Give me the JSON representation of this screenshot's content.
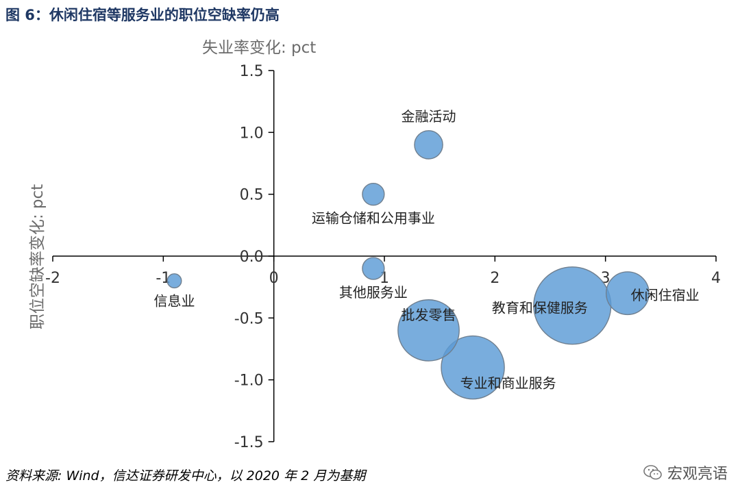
{
  "header": {
    "title": "图 6：休闲住宿等服务业的职位空缺率仍高"
  },
  "footer": {
    "source": "资料来源: Wind，信达证券研发中心，以 2020 年 2 月为基期",
    "watermark": "宏观亮语"
  },
  "chart_data": {
    "type": "scatter",
    "subtype": "bubble",
    "title": "图 6：休闲住宿等服务业的职位空缺率仍高",
    "xlabel": "失业率变化: pct",
    "ylabel": "职位空缺率变化: pct",
    "xlim": [
      -2,
      4
    ],
    "ylim": [
      -1.5,
      1.5
    ],
    "x_ticks": [
      -2,
      -1,
      0,
      1,
      2,
      3,
      4
    ],
    "y_ticks": [
      1.5,
      1.0,
      0.5,
      0.0,
      -0.5,
      -1.0,
      -1.5
    ],
    "x_tick_labels": [
      "-2",
      "-1",
      "0",
      "1",
      "2",
      "3",
      "4"
    ],
    "y_tick_labels": [
      "1.5",
      "1.0",
      "0.5",
      "0.0",
      "-0.5",
      "-1.0",
      "-1.5"
    ],
    "grid": false,
    "bubble_color": "#5b9bd5",
    "series": [
      {
        "name": "金融活动",
        "x": 1.4,
        "y": 0.9,
        "size": 1.0,
        "label_pos": "above"
      },
      {
        "name": "运输仓储和公用事业",
        "x": 0.9,
        "y": 0.5,
        "size": 0.6,
        "label_pos": "below"
      },
      {
        "name": "信息业",
        "x": -0.9,
        "y": -0.2,
        "size": 0.25,
        "label_pos": "below"
      },
      {
        "name": "其他服务业",
        "x": 0.9,
        "y": -0.1,
        "size": 0.6,
        "label_pos": "below"
      },
      {
        "name": "批发零售",
        "x": 1.4,
        "y": -0.6,
        "size": 4.7,
        "label_pos": "inside"
      },
      {
        "name": "专业和商业服务",
        "x": 1.8,
        "y": -0.9,
        "size": 5.0,
        "label_pos": "right-in"
      },
      {
        "name": "教育和保健服务",
        "x": 2.7,
        "y": -0.4,
        "size": 7.5,
        "label_pos": "left-in"
      },
      {
        "name": "休闲住宿业",
        "x": 3.2,
        "y": -0.3,
        "size": 2.3,
        "label_pos": "right-in"
      }
    ]
  }
}
